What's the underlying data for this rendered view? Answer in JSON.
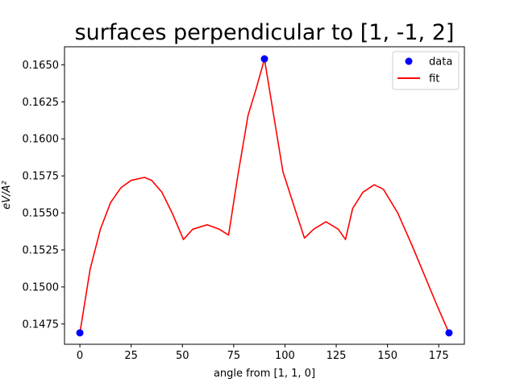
{
  "chart_data": {
    "type": "line",
    "title": "surfaces perpendicular to [1, -1, 2]",
    "xlabel": "angle from [1, 1, 0]",
    "ylabel": "eV/A²",
    "xlim": [
      -7.5,
      187.5
    ],
    "ylim": [
      0.14613,
      0.16622
    ],
    "xticks": [
      0,
      25,
      50,
      75,
      100,
      125,
      150,
      175
    ],
    "xtick_labels": [
      "0",
      "25",
      "50",
      "75",
      "100",
      "125",
      "150",
      "175"
    ],
    "yticks": [
      0.1475,
      0.15,
      0.1525,
      0.155,
      0.1575,
      0.16,
      0.1625,
      0.165
    ],
    "ytick_labels": [
      "0.1475",
      "0.1500",
      "0.1525",
      "0.1550",
      "0.1575",
      "0.1600",
      "0.1625",
      "0.1650"
    ],
    "grid": false,
    "legend": {
      "position": "top-right",
      "entries": [
        "data",
        "fit"
      ]
    },
    "colors": {
      "data": "#0000ff",
      "fit": "#ff0000"
    },
    "series": [
      {
        "name": "data",
        "style": "markers",
        "x": [
          0,
          90,
          180
        ],
        "y": [
          0.1469,
          0.1654,
          0.1469
        ]
      },
      {
        "name": "fit",
        "style": "line",
        "x": [
          0,
          5,
          10,
          15,
          20,
          25,
          31.5,
          35,
          40,
          45,
          50.5,
          55,
          62,
          68,
          72.5,
          77,
          82,
          86,
          90,
          94,
          99,
          105,
          109.5,
          114,
          120,
          126,
          129.5,
          133,
          138,
          143.5,
          148,
          155,
          162,
          168,
          174,
          180
        ],
        "y": [
          0.1469,
          0.1512,
          0.1539,
          0.1557,
          0.1567,
          0.1572,
          0.1574,
          0.1572,
          0.1564,
          0.155,
          0.1532,
          0.1539,
          0.1542,
          0.1539,
          0.1535,
          0.1575,
          0.1616,
          0.1634,
          0.1654,
          0.162,
          0.1578,
          0.1552,
          0.1533,
          0.1539,
          0.1544,
          0.1539,
          0.1532,
          0.1553,
          0.1564,
          0.1569,
          0.1566,
          0.155,
          0.1528,
          0.1508,
          0.1488,
          0.1469
        ]
      }
    ]
  }
}
